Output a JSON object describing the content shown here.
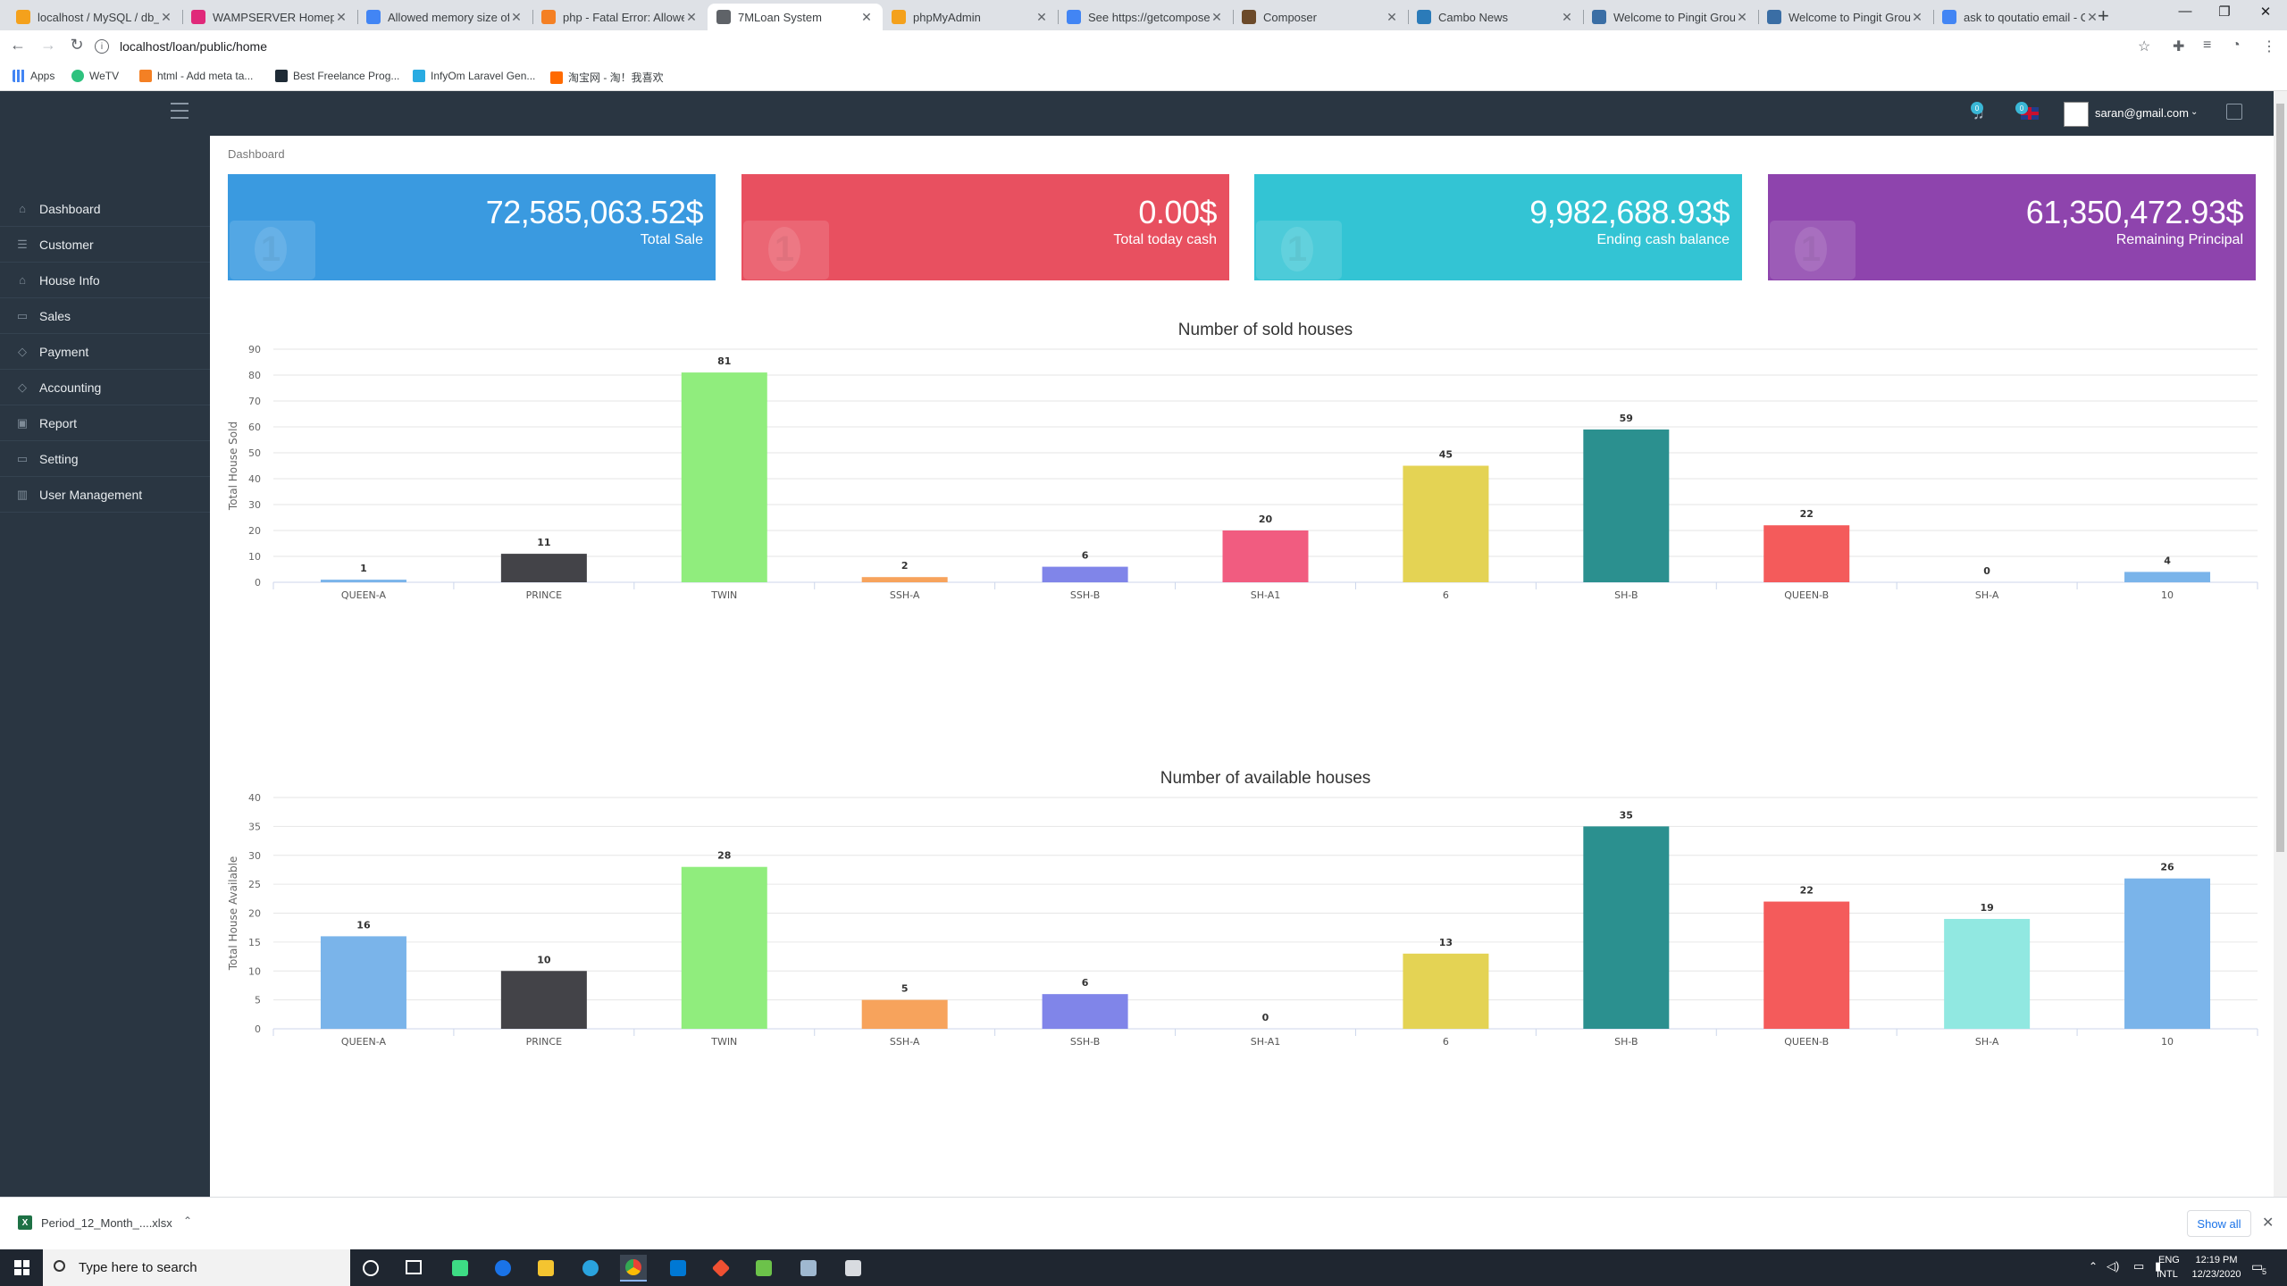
{
  "browser": {
    "tabs": [
      {
        "title": "localhost / MySQL / db_",
        "color": "#f4a11c"
      },
      {
        "title": "WAMPSERVER Homepage",
        "color": "#e0297a"
      },
      {
        "title": "Allowed memory size of",
        "color": "#4285f4"
      },
      {
        "title": "php - Fatal Error: Allowe",
        "color": "#f48024"
      },
      {
        "title": "7MLoan System",
        "color": "#5f6368"
      },
      {
        "title": "phpMyAdmin",
        "color": "#f4a11c"
      },
      {
        "title": "See https://getcompose",
        "color": "#4285f4"
      },
      {
        "title": "Composer",
        "color": "#6c4a2a"
      },
      {
        "title": "Cambo News",
        "color": "#2b7bb9"
      },
      {
        "title": "Welcome to Pingit Grou",
        "color": "#3a6ea5"
      },
      {
        "title": "Welcome to Pingit Grou",
        "color": "#3a6ea5"
      },
      {
        "title": "ask to qoutatio email - C",
        "color": "#4285f4"
      }
    ],
    "url": "localhost/loan/public/home",
    "bookmarks": [
      "Apps",
      "WeTV",
      "html - Add meta ta...",
      "Best Freelance Prog...",
      "InfyOm Laravel Gen...",
      "淘宝网 - 淘！我喜欢"
    ]
  },
  "header": {
    "notif_count_1": "0",
    "notif_count_2": "0",
    "user_email": "saran@gmail.com"
  },
  "sidebar": {
    "items": [
      {
        "label": "Dashboard",
        "icon": "home-icon",
        "glyph": "⌂"
      },
      {
        "label": "Customer",
        "icon": "list-icon",
        "glyph": "☰"
      },
      {
        "label": "House Info",
        "icon": "home-icon",
        "glyph": "⌂"
      },
      {
        "label": "Sales",
        "icon": "money-icon",
        "glyph": "▭"
      },
      {
        "label": "Payment",
        "icon": "tag-icon",
        "glyph": "◇"
      },
      {
        "label": "Accounting",
        "icon": "tag-icon",
        "glyph": "◇"
      },
      {
        "label": "Report",
        "icon": "briefcase-icon",
        "glyph": "▣"
      },
      {
        "label": "Setting",
        "icon": "folder-icon",
        "glyph": "▭"
      },
      {
        "label": "User Management",
        "icon": "bar-chart-icon",
        "glyph": "▥"
      }
    ]
  },
  "breadcrumb": "Dashboard",
  "cards": [
    {
      "value": "72,585,063.52$",
      "label": "Total Sale",
      "color": "#3a9ae0"
    },
    {
      "value": "0.00$",
      "label": "Total today cash",
      "color": "#e85060"
    },
    {
      "value": "9,982,688.93$",
      "label": "Ending cash balance",
      "color": "#33c4d4"
    },
    {
      "value": "61,350,472.93$",
      "label": "Remaining Principal",
      "color": "#8e44ad"
    }
  ],
  "chart_data": [
    {
      "type": "bar",
      "title": "Number of sold houses",
      "ylabel": "Total House Sold",
      "xlabel": "",
      "ylim": [
        0,
        90
      ],
      "yticks": [
        0,
        10,
        20,
        30,
        40,
        50,
        60,
        70,
        80,
        90
      ],
      "grid": true,
      "categories": [
        "QUEEN-A",
        "PRINCE",
        "TWIN",
        "SSH-A",
        "SSH-B",
        "SH-A1",
        "6",
        "SH-B",
        "QUEEN-B",
        "SH-A",
        "10"
      ],
      "values": [
        1,
        11,
        81,
        2,
        6,
        20,
        45,
        59,
        22,
        0,
        4
      ],
      "colors": [
        "#7ab4ea",
        "#434348",
        "#90ed7d",
        "#f7a35c",
        "#8085e9",
        "#f15c80",
        "#e4d354",
        "#2b908f",
        "#f45b5b",
        "#91e8e1",
        "#7ab4ea"
      ]
    },
    {
      "type": "bar",
      "title": "Number of available houses",
      "ylabel": "Total House Available",
      "xlabel": "",
      "ylim": [
        0,
        40
      ],
      "yticks": [
        0,
        5,
        10,
        15,
        20,
        25,
        30,
        35,
        40
      ],
      "grid": true,
      "categories": [
        "QUEEN-A",
        "PRINCE",
        "TWIN",
        "SSH-A",
        "SSH-B",
        "SH-A1",
        "6",
        "SH-B",
        "QUEEN-B",
        "SH-A",
        "10"
      ],
      "values": [
        16,
        10,
        28,
        5,
        6,
        0,
        13,
        35,
        22,
        19,
        26
      ],
      "colors": [
        "#7ab4ea",
        "#434348",
        "#90ed7d",
        "#f7a35c",
        "#8085e9",
        "#f15c80",
        "#e4d354",
        "#2b908f",
        "#f45b5b",
        "#91e8e1",
        "#7ab4ea"
      ]
    }
  ],
  "downloads": {
    "file": "Period_12_Month_....xlsx",
    "show_all": "Show all"
  },
  "taskbar": {
    "search_placeholder": "Type here to search",
    "lang": "ENG",
    "lang2": "INTL",
    "time": "12:19 PM",
    "date": "12/23/2020",
    "notif": "5"
  }
}
